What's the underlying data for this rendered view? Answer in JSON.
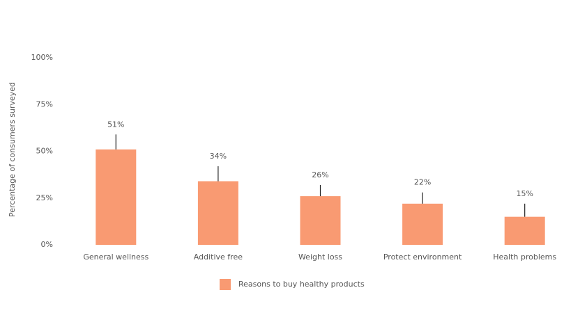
{
  "chart_data": {
    "type": "bar",
    "y_axis_label": "Percentage of consumers surveyed",
    "categories": [
      "General wellness",
      "Additive free",
      "Weight loss",
      "Protect environment",
      "Health problems"
    ],
    "series": [
      {
        "name": "Reasons to buy healthy products",
        "color": "#f99a72",
        "values": [
          51,
          34,
          26,
          22,
          15
        ],
        "value_labels": [
          "51%",
          "34%",
          "26%",
          "22%",
          "15%"
        ],
        "errors": [
          8,
          8,
          6,
          6,
          7
        ]
      }
    ],
    "ylim": [
      0,
      100
    ],
    "yticks": [
      {
        "value": 0,
        "label": "0%"
      },
      {
        "value": 25,
        "label": "25%"
      },
      {
        "value": 50,
        "label": "50%"
      },
      {
        "value": 75,
        "label": "75%"
      },
      {
        "value": 100,
        "label": "100%"
      }
    ],
    "grid": false
  }
}
